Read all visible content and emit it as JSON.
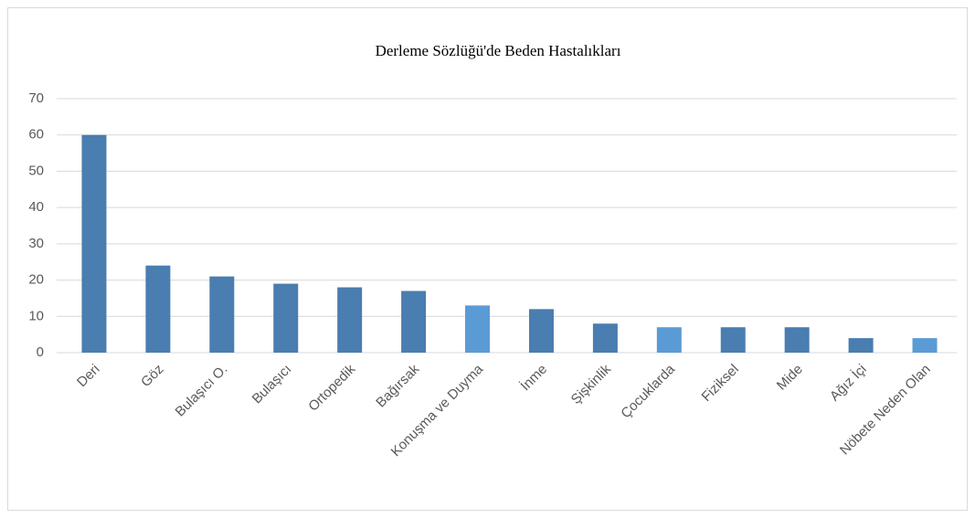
{
  "chart_data": {
    "type": "bar",
    "title": "Derleme Sözlüğü'de Beden Hastalıkları",
    "categories": [
      "Deri",
      "Göz",
      "Bulaşıcı O.",
      "Bulaşıcı",
      "Ortopedik",
      "Bağırsak",
      "Konuşma ve Duyma",
      "İnme",
      "Şişkinlik",
      "Çocuklarda",
      "Fiziksel",
      "Mide",
      "Ağız İçi",
      "Nöbete Neden Olan"
    ],
    "values": [
      60,
      24,
      21,
      19,
      18,
      17,
      13,
      12,
      8,
      7,
      7,
      7,
      4,
      4
    ],
    "colors": [
      "#4a7db0",
      "#4a7db0",
      "#4a7db0",
      "#4a7db0",
      "#4a7db0",
      "#4a7db0",
      "#5b9bd5",
      "#4a7db0",
      "#4a7db0",
      "#5b9bd5",
      "#4a7db0",
      "#4a7db0",
      "#4a7db0",
      "#5b9bd5"
    ],
    "ylim": [
      0,
      70
    ],
    "yticks": [
      0,
      10,
      20,
      30,
      40,
      50,
      60,
      70
    ],
    "grid": true
  }
}
